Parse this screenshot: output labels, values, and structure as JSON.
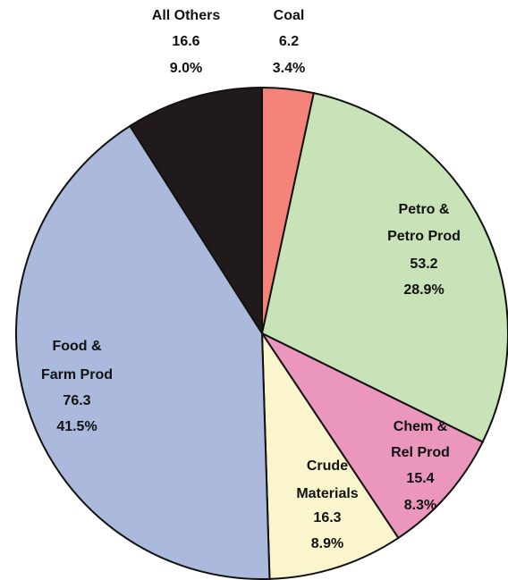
{
  "chart_data": {
    "type": "pie",
    "categories": [
      [
        "Coal"
      ],
      [
        "Petro &",
        "Petro Prod"
      ],
      [
        "Chem &",
        "Rel Prod"
      ],
      [
        "Crude",
        "Materials"
      ],
      [
        "Food &",
        "Farm Prod"
      ],
      [
        "All Others"
      ]
    ],
    "values": [
      6.2,
      53.2,
      15.4,
      16.3,
      76.3,
      16.6
    ],
    "percentages": [
      3.4,
      28.9,
      8.3,
      8.9,
      41.5,
      9.0
    ],
    "percentage_labels": [
      "3.4%",
      "28.9%",
      "8.3%",
      "8.9%",
      "41.5%",
      "9.0%"
    ],
    "colors": [
      "#f4837a",
      "#c9e3b8",
      "#eb97bd",
      "#faf5cc",
      "#aab9dc",
      "#201a1c"
    ]
  }
}
